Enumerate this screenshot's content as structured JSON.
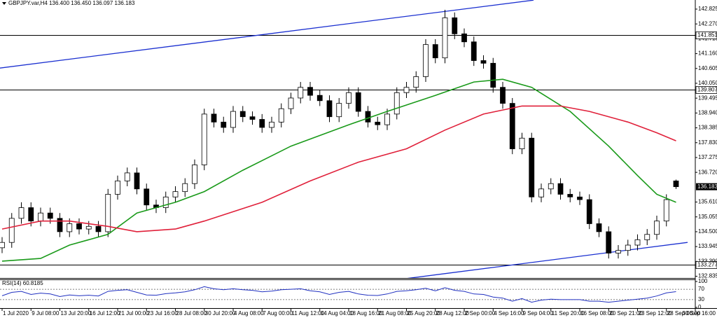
{
  "chart_data": {
    "type": "candlestick",
    "title": "GBPJPY.var,H4 136.400 136.450 136.097 136.183",
    "categories": [
      "1 Jul 2020",
      null,
      null,
      "9 Jul 08:00",
      null,
      null,
      "13 Jul 20:00",
      null,
      null,
      "16 Jul 12:00",
      null,
      null,
      "21 Jul 00:00",
      null,
      null,
      "23 Jul 16:00",
      null,
      null,
      "28 Jul 08:00",
      null,
      null,
      "30 Jul 20:00",
      null,
      null,
      "4 Aug 08:00",
      null,
      null,
      "7 Aug 00:00",
      null,
      null,
      "11 Aug 12:00",
      null,
      null,
      "14 Aug 04:00",
      null,
      null,
      "18 Aug 16:00",
      null,
      null,
      "21 Aug 08:00",
      null,
      null,
      "25 Aug 20:00",
      null,
      null,
      "28 Aug 12:00",
      null,
      null,
      "2 Sep 00:00",
      null,
      null,
      "4 Sep 16:00",
      null,
      null,
      "9 Sep 04:00",
      null,
      null,
      "11 Sep 20:00",
      null,
      null,
      "16 Sep 08:00",
      null,
      null,
      "20 Sep 21:00",
      null,
      null,
      "23 Sep 12:00",
      null,
      null,
      "28 Sep 00:00",
      null,
      null,
      "30 Sep 16:00"
    ],
    "open": [
      133.9,
      134.1,
      135.0,
      135.4,
      134.9,
      135.2,
      135.0,
      134.5,
      134.8,
      134.6,
      134.7,
      134.5,
      135.9,
      136.4,
      136.7,
      136.1,
      135.5,
      135.4,
      135.8,
      136.0,
      136.3,
      137.0,
      138.9,
      138.6,
      138.4,
      139.0,
      138.8,
      138.7,
      138.4,
      138.6,
      139.1,
      139.5,
      139.9,
      139.6,
      139.4,
      138.8,
      139.3,
      139.7,
      139.0,
      138.6,
      138.5,
      138.9,
      139.7,
      139.9,
      140.3,
      141.5,
      141.0,
      142.5,
      141.9,
      141.6,
      140.9,
      140.8,
      139.9,
      139.3,
      137.6,
      138.0,
      135.8,
      136.1,
      136.3,
      135.9,
      135.8,
      135.7,
      134.8,
      134.5,
      133.7,
      133.8,
      134.0,
      134.2,
      134.4,
      134.9,
      136.4,
      null,
      null
    ],
    "high": [
      134.3,
      135.2,
      135.6,
      135.6,
      135.4,
      135.4,
      135.2,
      135.0,
      135.0,
      134.9,
      134.9,
      136.1,
      136.6,
      136.9,
      136.9,
      136.3,
      135.7,
      136.0,
      136.2,
      136.5,
      137.2,
      139.1,
      139.1,
      138.8,
      139.2,
      139.2,
      139.0,
      138.9,
      138.8,
      139.3,
      139.7,
      140.1,
      140.1,
      139.8,
      139.6,
      139.5,
      139.9,
      139.9,
      139.2,
      138.8,
      139.1,
      139.9,
      140.1,
      140.5,
      141.7,
      141.7,
      142.8,
      142.7,
      142.1,
      141.8,
      141.1,
      141.0,
      140.1,
      139.5,
      138.2,
      138.2,
      136.3,
      136.5,
      136.5,
      136.1,
      136.0,
      135.9,
      135.0,
      134.7,
      134.0,
      134.2,
      134.4,
      134.6,
      135.1,
      135.9,
      136.45,
      null,
      null
    ],
    "low": [
      133.7,
      133.9,
      134.8,
      134.7,
      134.7,
      134.8,
      134.3,
      134.3,
      134.4,
      134.4,
      134.3,
      134.3,
      135.7,
      136.2,
      135.9,
      135.3,
      135.2,
      135.2,
      135.6,
      135.8,
      136.1,
      136.8,
      138.4,
      138.2,
      138.2,
      138.6,
      138.5,
      138.2,
      138.2,
      138.4,
      138.9,
      139.3,
      139.4,
      139.2,
      138.6,
      138.6,
      139.1,
      138.8,
      138.4,
      138.3,
      138.3,
      138.7,
      139.5,
      139.7,
      140.1,
      140.8,
      140.8,
      141.7,
      141.4,
      140.7,
      140.6,
      139.7,
      139.1,
      137.4,
      137.4,
      135.6,
      135.6,
      135.9,
      135.7,
      135.6,
      135.5,
      134.6,
      134.3,
      133.5,
      133.5,
      133.6,
      133.8,
      134.0,
      134.2,
      134.7,
      136.097,
      null,
      null
    ],
    "close": [
      134.1,
      135.0,
      135.4,
      134.9,
      135.2,
      135.0,
      134.5,
      134.8,
      134.6,
      134.7,
      134.5,
      135.9,
      136.4,
      136.7,
      136.1,
      135.5,
      135.4,
      135.8,
      136.0,
      136.3,
      137.0,
      138.9,
      138.6,
      138.4,
      139.0,
      138.8,
      138.7,
      138.4,
      138.6,
      139.1,
      139.5,
      139.9,
      139.6,
      139.4,
      138.8,
      139.3,
      139.7,
      139.0,
      138.6,
      138.5,
      138.9,
      139.7,
      139.9,
      140.3,
      141.5,
      141.0,
      142.5,
      141.9,
      141.6,
      140.9,
      140.8,
      139.9,
      139.3,
      137.6,
      138.0,
      135.8,
      136.1,
      136.3,
      135.9,
      135.8,
      135.7,
      134.8,
      134.5,
      133.7,
      133.8,
      134.0,
      134.2,
      134.4,
      134.9,
      135.7,
      136.183,
      null,
      null
    ],
    "up_color": "#ffffff",
    "down_color": "#000000",
    "ylim": [
      132.77,
      143.165
    ],
    "yticks": [
      132.835,
      {
        "value": 133.39,
        "label": "133.390"
      },
      133.945,
      {
        "value": 134.5,
        "label": "134.500"
      },
      135.055,
      {
        "value": 135.61,
        "label": "135.610"
      },
      {
        "value": 136.72,
        "label": "136.720"
      },
      137.275,
      {
        "value": 137.83,
        "label": "137.830"
      },
      138.385,
      {
        "value": 138.94,
        "label": "138.940"
      },
      139.495,
      {
        "value": 140.05,
        "label": "140.050"
      },
      140.605,
      {
        "value": 141.16,
        "label": "141.160"
      },
      141.715,
      {
        "value": 142.27,
        "label": "142.270"
      },
      142.825
    ],
    "overlays": [
      {
        "color": "#1a9a1a",
        "x": [
          0,
          4,
          7,
          11,
          14,
          18,
          21,
          25,
          30,
          36,
          40,
          45,
          49,
          52,
          55,
          59,
          63,
          66,
          68,
          70
        ],
        "values": [
          133.4,
          133.5,
          134.0,
          134.4,
          135.2,
          135.6,
          136.0,
          136.8,
          137.7,
          138.5,
          139.0,
          139.6,
          140.1,
          140.2,
          139.9,
          139.0,
          137.7,
          136.6,
          135.9,
          135.6
        ]
      },
      {
        "color": "#e0203a",
        "x": [
          0,
          4,
          7,
          11,
          14,
          18,
          21,
          27,
          32,
          37,
          42,
          46,
          50,
          54,
          58,
          61,
          65,
          68,
          70
        ],
        "values": [
          134.6,
          134.9,
          134.9,
          134.7,
          134.5,
          134.6,
          134.9,
          135.6,
          136.4,
          137.1,
          137.6,
          138.3,
          138.9,
          139.2,
          139.2,
          139.0,
          138.6,
          138.2,
          137.9
        ]
      }
    ],
    "trendlines": [
      {
        "color": "#1a2fd0",
        "x": [
          -0.7,
          55.2
        ],
        "values": [
          140.6,
          143.16
        ]
      },
      {
        "color": "#1a2fd0",
        "x": [
          42,
          71.2
        ],
        "values": [
          132.75,
          134.1
        ]
      }
    ],
    "levels": [
      141.851,
      139.807,
      133.277
    ],
    "rsi": {
      "title": "RSI(14) 60.8185",
      "color": "#2030c0",
      "values": [
        45,
        58,
        62,
        50,
        55,
        52,
        42,
        48,
        45,
        47,
        44,
        62,
        66,
        68,
        58,
        48,
        47,
        53,
        56,
        60,
        68,
        80,
        72,
        68,
        72,
        68,
        66,
        60,
        63,
        68,
        70,
        72,
        64,
        60,
        50,
        58,
        62,
        52,
        47,
        46,
        52,
        62,
        64,
        68,
        74,
        64,
        76,
        66,
        62,
        52,
        50,
        40,
        36,
        24,
        34,
        20,
        28,
        32,
        30,
        30,
        30,
        24,
        24,
        20,
        24,
        28,
        32,
        36,
        44,
        56,
        60.8185,
        null,
        null
      ],
      "ylim": [
        0,
        100
      ],
      "yticks": [
        0,
        30,
        70,
        100
      ]
    }
  }
}
